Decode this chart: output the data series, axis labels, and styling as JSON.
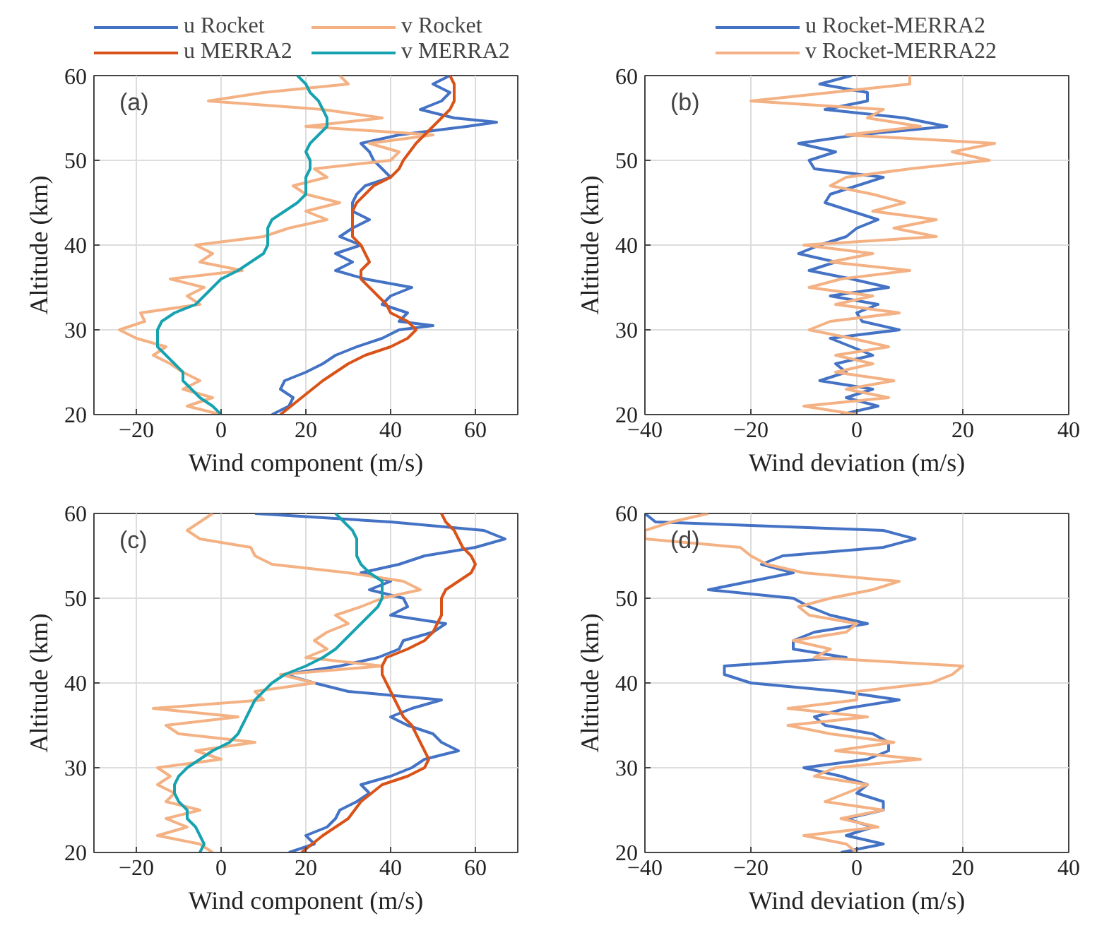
{
  "chart_data": [
    {
      "type": "line",
      "xlabel": "Wind component (m/s)",
      "ylabel": "Altitude (km)",
      "xlim": [
        -30,
        70
      ],
      "ylim": [
        20,
        60
      ],
      "xticks": [
        -20,
        0,
        20,
        40,
        60
      ],
      "yticks": [
        20,
        30,
        40,
        50,
        60
      ],
      "grid": true,
      "legend": "top",
      "marker": "none",
      "line_style": "solid",
      "annotations": [
        "(a)"
      ],
      "series": [
        {
          "name": "u Rocket",
          "color": "#4472c4",
          "x": [
            12,
            16,
            17,
            14,
            15,
            20,
            24,
            27,
            32,
            38,
            42,
            50,
            42,
            44,
            38,
            40,
            45,
            34,
            27,
            31,
            27,
            33,
            28,
            31,
            35,
            31,
            31,
            32,
            34,
            40,
            38,
            36,
            35,
            33,
            42,
            58,
            65,
            55,
            47,
            52,
            54,
            50,
            54
          ],
          "values": [
            20,
            21,
            22,
            23,
            24,
            25,
            26,
            27,
            28,
            29,
            30,
            30.5,
            31,
            32,
            33,
            34,
            35,
            36,
            37,
            38,
            39,
            40,
            41,
            42,
            43,
            44,
            45,
            46,
            47,
            48,
            49,
            50,
            51,
            52,
            53,
            54,
            54.5,
            55,
            56,
            57,
            58,
            59,
            60
          ]
        },
        {
          "name": "v Rocket",
          "color": "#f4b183",
          "x": [
            0,
            -8,
            -2,
            -9,
            -5,
            -9,
            -12,
            -16,
            -13,
            -20,
            -24,
            -18,
            -19,
            -5,
            -8,
            -4,
            -12,
            5,
            -5,
            -2,
            -6,
            10,
            16,
            25,
            20,
            28,
            20,
            17,
            25,
            22,
            40,
            42,
            35,
            50,
            20,
            38,
            24,
            -3,
            10,
            30,
            28
          ],
          "values": [
            20,
            21,
            22,
            23,
            24,
            25,
            26,
            27,
            28,
            29,
            30,
            31,
            32,
            33,
            34,
            35,
            36,
            37,
            38,
            39,
            40,
            41,
            42,
            43,
            44,
            45,
            46,
            47,
            48,
            49,
            50,
            51,
            52,
            53,
            54,
            55,
            56,
            57,
            58,
            59,
            60
          ]
        },
        {
          "name": "u MERRA2",
          "color": "#d95319",
          "x": [
            14,
            19,
            24,
            30,
            34,
            40,
            44,
            46,
            44,
            40,
            39,
            37,
            35,
            33,
            33,
            35,
            34,
            33,
            31,
            31,
            31,
            31,
            32,
            34,
            36,
            40,
            42,
            43,
            46,
            50,
            54,
            55,
            55,
            55,
            54
          ],
          "values": [
            20,
            22,
            24,
            26,
            27,
            28,
            29,
            30,
            31,
            32,
            33,
            34,
            35,
            36,
            37,
            38,
            39,
            40,
            41,
            42,
            43,
            44,
            45,
            46,
            47,
            48,
            49,
            50,
            52,
            54,
            56,
            57,
            58,
            59,
            60
          ]
        },
        {
          "name": "v MERRA2",
          "color": "#17a2b0",
          "x": [
            0,
            -2,
            -5,
            -7,
            -9,
            -9,
            -11,
            -13,
            -15,
            -15,
            -15,
            -14,
            -11,
            -6,
            -4,
            -2,
            0,
            4,
            7,
            10,
            11,
            11,
            11,
            12,
            15,
            18,
            20,
            20,
            20,
            21,
            21,
            20,
            21,
            23,
            25,
            25,
            24,
            23,
            21,
            20,
            18
          ],
          "values": [
            20,
            21,
            22,
            23,
            24,
            25,
            26,
            27,
            28,
            29,
            30,
            31,
            32,
            33,
            34,
            35,
            36,
            37,
            38,
            39,
            40,
            41,
            42,
            43,
            44,
            45,
            46,
            47,
            48,
            49,
            50,
            51,
            52,
            53,
            54,
            55,
            56,
            57,
            58,
            59,
            60
          ]
        }
      ]
    },
    {
      "type": "line",
      "xlabel": "Wind deviation (m/s)",
      "ylabel": "Altitude (km)",
      "xlim": [
        -40,
        40
      ],
      "ylim": [
        20,
        60
      ],
      "xticks": [
        -40,
        -20,
        0,
        20,
        40
      ],
      "yticks": [
        20,
        30,
        40,
        50,
        60
      ],
      "grid": true,
      "legend": "top",
      "marker": "none",
      "line_style": "solid",
      "annotations": [
        "(b)"
      ],
      "series": [
        {
          "name": "u Rocket-MERRA2",
          "color": "#4472c4",
          "x": [
            -3,
            4,
            -2,
            3,
            -7,
            -2,
            -4,
            3,
            -1,
            -5,
            8,
            1,
            0,
            4,
            -5,
            6,
            -1,
            -9,
            -4,
            -11,
            -7,
            -2,
            0,
            4,
            -1,
            -6,
            -5,
            0,
            5,
            -8,
            -9,
            -4,
            -11,
            0,
            17,
            9,
            -6,
            2,
            2,
            -7,
            -1
          ],
          "values": [
            20,
            21,
            22,
            23,
            24,
            25,
            26,
            27,
            28,
            29,
            30,
            31,
            32,
            33,
            34,
            35,
            36,
            37,
            38,
            39,
            40,
            41,
            42,
            43,
            44,
            45,
            46,
            47,
            48,
            49,
            50,
            51,
            52,
            53,
            54,
            55,
            56,
            57,
            58,
            59,
            60
          ]
        },
        {
          "name": "v Rocket-MERRA22",
          "color": "#f4b183",
          "x": [
            0,
            -10,
            6,
            -2,
            7,
            -4,
            3,
            -4,
            6,
            -1,
            -9,
            -5,
            8,
            -4,
            3,
            -9,
            -3,
            10,
            -5,
            3,
            -10,
            15,
            7,
            15,
            3,
            9,
            3,
            -5,
            -2,
            10,
            25,
            18,
            26,
            -2,
            12,
            2,
            5,
            -20,
            -5,
            10,
            10
          ],
          "values": [
            20,
            21,
            22,
            23,
            24,
            25,
            26,
            27,
            28,
            29,
            30,
            31,
            32,
            33,
            34,
            35,
            36,
            37,
            38,
            39,
            40,
            41,
            42,
            43,
            44,
            45,
            46,
            47,
            48,
            49,
            50,
            51,
            52,
            53,
            54,
            55,
            56,
            57,
            58,
            59,
            60
          ]
        }
      ]
    },
    {
      "type": "line",
      "xlabel": "Wind component (m/s)",
      "ylabel": "Altitude (km)",
      "xlim": [
        -30,
        70
      ],
      "ylim": [
        20,
        60
      ],
      "xticks": [
        -20,
        0,
        20,
        40,
        60
      ],
      "yticks": [
        20,
        30,
        40,
        50,
        60
      ],
      "grid": true,
      "marker": "none",
      "line_style": "solid",
      "annotations": [
        "(c)"
      ],
      "series": [
        {
          "color": "#4472c4",
          "x": [
            16,
            22,
            20,
            25,
            27,
            28,
            32,
            35,
            33,
            40,
            45,
            48,
            56,
            52,
            50,
            44,
            40,
            45,
            52,
            30,
            22,
            15,
            28,
            37,
            42,
            43,
            50,
            53,
            40,
            44,
            43,
            35,
            40,
            33,
            42,
            48,
            60,
            67,
            62,
            40,
            8
          ],
          "values": [
            20,
            21,
            22,
            23,
            24,
            25,
            26,
            27,
            28,
            29,
            30,
            31,
            32,
            33,
            34,
            35,
            36,
            37,
            38,
            39,
            40,
            41,
            42,
            43,
            44,
            45,
            46,
            47,
            48,
            49,
            50,
            51,
            52,
            53,
            54,
            55,
            56,
            57,
            58,
            59,
            60
          ]
        },
        {
          "color": "#f4b183",
          "x": [
            -2,
            -5,
            -15,
            -8,
            -13,
            -5,
            -13,
            -11,
            -15,
            -12,
            -15,
            0,
            -6,
            8,
            -10,
            -13,
            4,
            -16,
            10,
            8,
            22,
            14,
            38,
            20,
            25,
            22,
            25,
            30,
            27,
            33,
            38,
            47,
            43,
            30,
            12,
            8,
            7,
            -5,
            -8,
            -5,
            -2
          ],
          "values": [
            20,
            21,
            22,
            23,
            24,
            25,
            26,
            27,
            28,
            29,
            30,
            31,
            32,
            33,
            34,
            35,
            36,
            37,
            38,
            39,
            40,
            41,
            42,
            43,
            44,
            45,
            46,
            47,
            48,
            49,
            50,
            51,
            52,
            53,
            54,
            55,
            56,
            57,
            58,
            59,
            60
          ]
        },
        {
          "color": "#d95319",
          "x": [
            19,
            24,
            30,
            33,
            38,
            44,
            48,
            49,
            48,
            47,
            46,
            45,
            43,
            42,
            41,
            40,
            39,
            38,
            38,
            39,
            44,
            48,
            50,
            51,
            52,
            52,
            52,
            53,
            56,
            59,
            60,
            59,
            57,
            56,
            55,
            53,
            52
          ],
          "values": [
            20,
            22,
            24,
            26,
            28,
            29,
            30,
            31,
            32,
            33,
            34,
            35,
            36,
            37,
            38,
            39,
            40,
            41,
            42,
            43,
            44,
            45,
            46,
            47,
            48,
            49,
            50,
            51,
            52,
            53,
            54,
            55,
            56,
            57,
            58,
            59,
            60
          ]
        },
        {
          "color": "#17a2b0",
          "x": [
            -5,
            -4,
            -5,
            -6,
            -8,
            -8,
            -10,
            -11,
            -11,
            -10,
            -8,
            -5,
            -2,
            2,
            4,
            5,
            6,
            7,
            8,
            10,
            12,
            15,
            20,
            24,
            27,
            29,
            31,
            33,
            35,
            37,
            38,
            38,
            38,
            35,
            33,
            32,
            32,
            32,
            31,
            29,
            27
          ],
          "values": [
            20,
            21,
            22,
            23,
            24,
            25,
            26,
            27,
            28,
            29,
            30,
            31,
            32,
            33,
            34,
            35,
            36,
            37,
            38,
            39,
            40,
            41,
            42,
            43,
            44,
            45,
            46,
            47,
            48,
            49,
            50,
            51,
            52,
            53,
            54,
            55,
            56,
            57,
            58,
            59,
            60
          ]
        }
      ]
    },
    {
      "type": "line",
      "xlabel": "Wind deviation (m/s)",
      "ylabel": "Altitude (km)",
      "xlim": [
        -40,
        40
      ],
      "ylim": [
        20,
        60
      ],
      "xticks": [
        -40,
        -20,
        0,
        20,
        40
      ],
      "yticks": [
        20,
        30,
        40,
        50,
        60
      ],
      "grid": true,
      "marker": "none",
      "line_style": "solid",
      "annotations": [
        "(d)"
      ],
      "series": [
        {
          "color": "#4472c4",
          "x": [
            -3,
            5,
            -2,
            3,
            -2,
            5,
            5,
            0,
            2,
            -3,
            -10,
            2,
            6,
            6,
            3,
            -6,
            -8,
            -2,
            8,
            -3,
            -20,
            -25,
            -25,
            -2,
            -12,
            -12,
            -8,
            2,
            -5,
            -9,
            -12,
            -28,
            -20,
            -12,
            -18,
            -14,
            5,
            11,
            5,
            -38,
            -40
          ],
          "values": [
            20,
            21,
            22,
            23,
            24,
            25,
            26,
            27,
            28,
            29,
            30,
            31,
            32,
            33,
            34,
            35,
            36,
            37,
            38,
            39,
            40,
            41,
            42,
            43,
            44,
            45,
            46,
            47,
            48,
            49,
            50,
            51,
            52,
            53,
            54,
            55,
            56,
            57,
            58,
            59,
            60
          ]
        },
        {
          "color": "#f4b183",
          "x": [
            0,
            -2,
            -10,
            4,
            -3,
            5,
            -6,
            -2,
            2,
            -8,
            -4,
            12,
            -4,
            7,
            -5,
            -13,
            2,
            -13,
            0,
            0,
            14,
            18,
            20,
            -8,
            -5,
            -12,
            -2,
            0,
            -9,
            -11,
            -5,
            3,
            8,
            -10,
            -17,
            -20,
            -22,
            -40,
            -40,
            -35,
            -28
          ],
          "values": [
            20,
            21,
            22,
            23,
            24,
            25,
            26,
            27,
            28,
            29,
            30,
            31,
            32,
            33,
            34,
            35,
            36,
            37,
            38,
            39,
            40,
            41,
            42,
            43,
            44,
            45,
            46,
            47,
            48,
            49,
            50,
            51,
            52,
            53,
            54,
            55,
            56,
            57,
            58,
            59,
            60
          ]
        }
      ]
    }
  ]
}
